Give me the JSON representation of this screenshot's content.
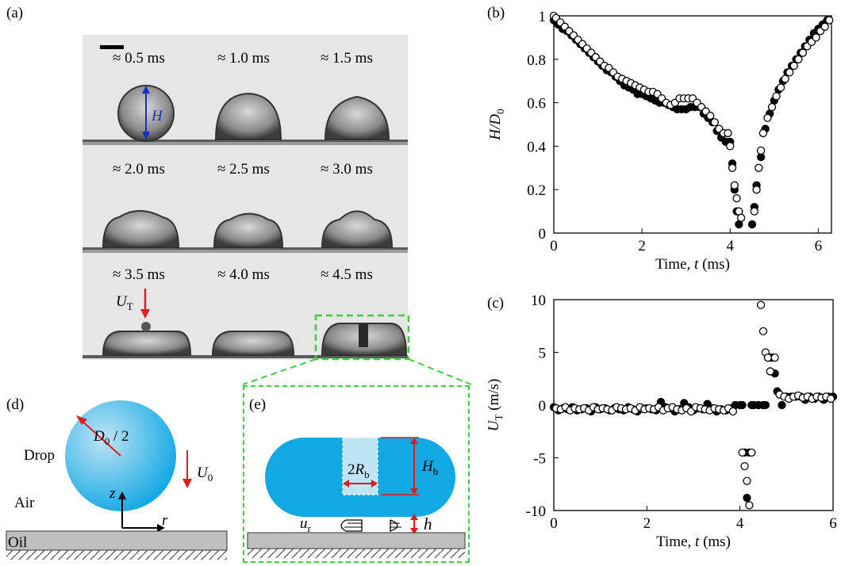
{
  "panels": {
    "a": "(a)",
    "b": "(b)",
    "c": "(c)",
    "d": "(d)",
    "e": "(e)"
  },
  "frames": [
    {
      "time": "≈ 0.5 ms"
    },
    {
      "time": "≈ 1.0 ms"
    },
    {
      "time": "≈ 1.5 ms"
    },
    {
      "time": "≈ 2.0 ms"
    },
    {
      "time": "≈ 2.5 ms"
    },
    {
      "time": "≈ 3.0 ms"
    },
    {
      "time": "≈ 3.5 ms"
    },
    {
      "time": "≈ 4.0 ms"
    },
    {
      "time": "≈ 4.5 ms"
    }
  ],
  "annotations": {
    "H": "H",
    "UT_main": "U",
    "UT_sub": "T"
  },
  "colors": {
    "drop_blue": "#12a8e4",
    "drop_light": "#bfe4f5",
    "highlight_green": "#3ecf3e",
    "arrow_red": "#e01b1b",
    "arrow_blue": "#1530c8",
    "oil_gray": "#bfbfbf"
  },
  "diagram_d": {
    "drop_label": "Drop",
    "air_label": "Air",
    "oil_label": "Oil",
    "radius_main": "D",
    "radius_sub": "0",
    "radius_tail": " / 2",
    "u0_main": "U",
    "u0_sub": "0",
    "z_axis": "z",
    "r_axis": "r"
  },
  "diagram_e": {
    "rb_prefix": "2",
    "rb_main": "R",
    "rb_sub": "b",
    "hb_main": "H",
    "hb_sub": "b",
    "ur_main": "u",
    "ur_sub": "r",
    "h_label": "h"
  },
  "chart_data": [
    {
      "type": "scatter",
      "panel": "(b)",
      "xlabel": "Time, t (ms)",
      "ylabel": "H/D0",
      "xlim": [
        0,
        6.3
      ],
      "ylim": [
        0,
        1
      ],
      "xticks": [
        0,
        2,
        4,
        6
      ],
      "yticks": [
        0,
        0.2,
        0.4,
        0.6,
        0.8,
        1
      ],
      "series": [
        {
          "marker": "filled",
          "x": [
            0.0,
            0.1,
            0.2,
            0.3,
            0.4,
            0.5,
            0.6,
            0.7,
            0.8,
            0.9,
            1.0,
            1.1,
            1.2,
            1.3,
            1.4,
            1.5,
            1.6,
            1.7,
            1.8,
            1.9,
            2.0,
            2.1,
            2.2,
            2.3,
            2.4,
            2.5,
            2.6,
            2.7,
            2.8,
            2.9,
            3.0,
            3.1,
            3.2,
            3.3,
            3.4,
            3.5,
            3.6,
            3.7,
            3.8,
            3.9,
            4.0,
            4.05,
            4.1,
            4.15,
            4.2,
            4.5,
            4.55,
            4.6,
            4.7,
            4.8,
            4.9,
            5.0,
            5.1,
            5.2,
            5.3,
            5.4,
            5.5,
            5.6,
            5.7,
            5.8,
            5.9,
            6.0,
            6.1,
            6.2
          ],
          "y": [
            0.98,
            0.96,
            0.94,
            0.93,
            0.91,
            0.89,
            0.87,
            0.85,
            0.83,
            0.81,
            0.79,
            0.77,
            0.75,
            0.74,
            0.72,
            0.7,
            0.68,
            0.67,
            0.66,
            0.64,
            0.64,
            0.63,
            0.62,
            0.61,
            0.6,
            0.6,
            0.59,
            0.58,
            0.57,
            0.57,
            0.57,
            0.58,
            0.58,
            0.58,
            0.55,
            0.53,
            0.51,
            0.47,
            0.44,
            0.42,
            0.42,
            0.32,
            0.2,
            0.1,
            0.04,
            0.04,
            0.12,
            0.22,
            0.35,
            0.48,
            0.55,
            0.61,
            0.66,
            0.7,
            0.74,
            0.77,
            0.8,
            0.83,
            0.86,
            0.89,
            0.92,
            0.94,
            0.96,
            0.98
          ]
        },
        {
          "marker": "open",
          "x": [
            0.0,
            0.05,
            0.15,
            0.25,
            0.35,
            0.45,
            0.55,
            0.65,
            0.75,
            0.85,
            0.95,
            1.05,
            1.15,
            1.25,
            1.35,
            1.45,
            1.55,
            1.65,
            1.75,
            1.85,
            1.95,
            2.05,
            2.15,
            2.25,
            2.35,
            2.45,
            2.55,
            2.65,
            2.75,
            2.85,
            2.95,
            3.05,
            3.15,
            3.25,
            3.35,
            3.45,
            3.55,
            3.65,
            3.75,
            3.85,
            3.95,
            4.0,
            4.05,
            4.1,
            4.15,
            4.2,
            4.25,
            4.55,
            4.6,
            4.65,
            4.7,
            4.75,
            4.85,
            4.95,
            5.05,
            5.15,
            5.25,
            5.35,
            5.45,
            5.55,
            5.65,
            5.75,
            5.85,
            5.95,
            6.05,
            6.15,
            6.25
          ],
          "y": [
            1.0,
            0.99,
            0.97,
            0.95,
            0.93,
            0.91,
            0.89,
            0.87,
            0.85,
            0.83,
            0.81,
            0.79,
            0.77,
            0.76,
            0.74,
            0.72,
            0.71,
            0.7,
            0.69,
            0.68,
            0.67,
            0.66,
            0.65,
            0.65,
            0.64,
            0.62,
            0.6,
            0.59,
            0.6,
            0.62,
            0.62,
            0.62,
            0.62,
            0.6,
            0.58,
            0.56,
            0.54,
            0.51,
            0.48,
            0.46,
            0.46,
            0.4,
            0.3,
            0.22,
            0.16,
            0.1,
            0.07,
            0.1,
            0.2,
            0.3,
            0.38,
            0.46,
            0.53,
            0.58,
            0.63,
            0.67,
            0.71,
            0.74,
            0.77,
            0.8,
            0.83,
            0.86,
            0.88,
            0.9,
            0.93,
            0.95,
            0.98
          ]
        }
      ]
    },
    {
      "type": "scatter",
      "panel": "(c)",
      "xlabel": "Time, t (ms)",
      "ylabel": "UT (m/s)",
      "xlim": [
        0,
        6
      ],
      "ylim": [
        -10,
        10
      ],
      "xticks": [
        0,
        2,
        4,
        6
      ],
      "yticks": [
        -10,
        -5,
        0,
        5,
        10
      ],
      "series": [
        {
          "marker": "filled",
          "x": [
            0.0,
            0.1,
            0.2,
            0.3,
            0.4,
            0.5,
            0.6,
            0.7,
            0.8,
            0.9,
            1.0,
            1.1,
            1.2,
            1.3,
            1.4,
            1.5,
            1.6,
            1.7,
            1.8,
            1.9,
            2.0,
            2.1,
            2.2,
            2.3,
            2.4,
            2.5,
            2.6,
            2.7,
            2.8,
            2.9,
            3.0,
            3.1,
            3.2,
            3.3,
            3.4,
            3.5,
            3.6,
            3.7,
            3.8,
            3.9,
            4.0,
            4.05,
            4.1,
            4.15,
            4.2,
            4.25,
            4.3,
            4.4,
            4.5,
            4.55,
            4.6,
            4.65,
            4.7,
            4.75,
            4.8,
            4.9,
            5.0,
            5.1,
            5.2,
            5.3,
            5.4,
            5.5,
            5.6,
            5.7,
            5.8,
            5.9,
            6.0
          ],
          "y": [
            -0.2,
            -0.5,
            -0.3,
            -0.4,
            -0.2,
            -0.5,
            -0.4,
            -0.3,
            -0.6,
            -0.2,
            -0.4,
            -0.3,
            -0.5,
            -0.3,
            -0.4,
            -0.5,
            -0.2,
            -0.4,
            -0.6,
            -0.3,
            -0.3,
            -0.4,
            -0.5,
            0.3,
            -0.2,
            -0.3,
            -0.6,
            -0.4,
            0.2,
            -0.2,
            -0.5,
            -0.3,
            -0.4,
            0.1,
            -0.3,
            -0.6,
            -0.4,
            -0.5,
            -0.3,
            0.0,
            0.0,
            0.0,
            -4.5,
            -8.8,
            -4.5,
            0.0,
            0.0,
            0.0,
            0.0,
            0.0,
            4.5,
            4.5,
            4.5,
            3.0,
            1.3,
            0.0,
            0.8,
            0.8,
            0.8,
            0.8,
            0.5,
            0.8,
            0.6,
            0.8,
            0.5,
            0.8,
            0.8
          ]
        },
        {
          "marker": "open",
          "x": [
            0.05,
            0.15,
            0.25,
            0.35,
            0.45,
            0.55,
            0.65,
            0.75,
            0.85,
            0.95,
            1.05,
            1.15,
            1.25,
            1.35,
            1.45,
            1.55,
            1.65,
            1.75,
            1.85,
            1.95,
            2.05,
            2.15,
            2.25,
            2.35,
            2.45,
            2.55,
            2.65,
            2.75,
            2.85,
            2.95,
            3.05,
            3.15,
            3.25,
            3.35,
            3.45,
            3.55,
            3.65,
            3.75,
            3.85,
            4.05,
            4.1,
            4.15,
            4.2,
            4.25,
            4.45,
            4.5,
            4.55,
            4.6,
            4.65,
            4.75,
            4.85,
            4.95,
            5.05,
            5.15,
            5.25,
            5.35,
            5.45,
            5.55,
            5.65,
            5.75,
            5.85,
            5.95
          ],
          "y": [
            -0.3,
            -0.4,
            -0.2,
            -0.5,
            -0.3,
            -0.4,
            -0.3,
            -0.5,
            -0.2,
            -0.4,
            -0.3,
            -0.4,
            -0.5,
            -0.2,
            -0.3,
            -0.4,
            -0.3,
            -0.5,
            -0.2,
            -0.4,
            -0.3,
            -0.4,
            -0.2,
            -0.5,
            -0.3,
            -0.2,
            -0.4,
            -0.5,
            -0.3,
            -0.6,
            -0.2,
            -0.3,
            -0.4,
            -0.5,
            -0.3,
            -0.4,
            -0.5,
            -0.3,
            -0.6,
            -4.5,
            -5.8,
            -7.2,
            -9.5,
            -4.5,
            9.5,
            7.0,
            5.0,
            4.5,
            3.2,
            4.5,
            1.0,
            0.8,
            0.6,
            0.8,
            0.9,
            0.7,
            0.8,
            0.6,
            0.8,
            0.7,
            0.8,
            0.6
          ]
        }
      ]
    }
  ]
}
